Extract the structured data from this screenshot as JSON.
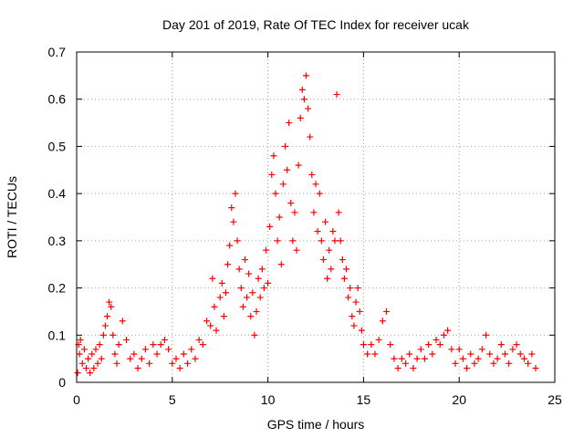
{
  "chart_data": {
    "type": "scatter",
    "title": "Day 201 of 2019, Rate Of TEC Index for receiver ucak",
    "xlabel": "GPS time / hours",
    "ylabel": "ROTI / TECUs",
    "xlim": [
      0,
      25
    ],
    "ylim": [
      0,
      0.7
    ],
    "xticks": [
      "0",
      "5",
      "10",
      "15",
      "20",
      "25"
    ],
    "yticks": [
      "0",
      "0.1",
      "0.2",
      "0.3",
      "0.4",
      "0.5",
      "0.6",
      "0.7"
    ],
    "grid": true,
    "legend": "none",
    "marker": "plus",
    "color": "#ff0000",
    "series": [
      {
        "points": [
          [
            0.05,
            0.02
          ],
          [
            0.1,
            0.08
          ],
          [
            0.15,
            0.06
          ],
          [
            0.2,
            0.09
          ],
          [
            0.3,
            0.04
          ],
          [
            0.4,
            0.07
          ],
          [
            0.5,
            0.03
          ],
          [
            0.6,
            0.05
          ],
          [
            0.7,
            0.02
          ],
          [
            0.8,
            0.06
          ],
          [
            0.9,
            0.03
          ],
          [
            1.0,
            0.07
          ],
          [
            1.1,
            0.04
          ],
          [
            1.2,
            0.08
          ],
          [
            1.3,
            0.05
          ],
          [
            1.4,
            0.1
          ],
          [
            1.5,
            0.12
          ],
          [
            1.6,
            0.14
          ],
          [
            1.7,
            0.17
          ],
          [
            1.8,
            0.16
          ],
          [
            1.9,
            0.1
          ],
          [
            2.0,
            0.06
          ],
          [
            2.1,
            0.04
          ],
          [
            2.2,
            0.08
          ],
          [
            2.4,
            0.13
          ],
          [
            2.6,
            0.09
          ],
          [
            2.8,
            0.05
          ],
          [
            3.0,
            0.06
          ],
          [
            3.2,
            0.03
          ],
          [
            3.4,
            0.05
          ],
          [
            3.6,
            0.07
          ],
          [
            3.8,
            0.04
          ],
          [
            4.0,
            0.08
          ],
          [
            4.2,
            0.06
          ],
          [
            4.4,
            0.08
          ],
          [
            4.6,
            0.09
          ],
          [
            4.8,
            0.07
          ],
          [
            5.0,
            0.04
          ],
          [
            5.2,
            0.05
          ],
          [
            5.4,
            0.03
          ],
          [
            5.6,
            0.06
          ],
          [
            5.8,
            0.04
          ],
          [
            6.0,
            0.07
          ],
          [
            6.2,
            0.05
          ],
          [
            6.4,
            0.09
          ],
          [
            6.6,
            0.08
          ],
          [
            6.8,
            0.13
          ],
          [
            7.0,
            0.12
          ],
          [
            7.1,
            0.22
          ],
          [
            7.2,
            0.16
          ],
          [
            7.3,
            0.11
          ],
          [
            7.5,
            0.18
          ],
          [
            7.6,
            0.21
          ],
          [
            7.7,
            0.14
          ],
          [
            7.8,
            0.19
          ],
          [
            7.9,
            0.25
          ],
          [
            8.0,
            0.29
          ],
          [
            8.1,
            0.37
          ],
          [
            8.2,
            0.34
          ],
          [
            8.3,
            0.4
          ],
          [
            8.4,
            0.3
          ],
          [
            8.5,
            0.24
          ],
          [
            8.6,
            0.2
          ],
          [
            8.7,
            0.16
          ],
          [
            8.8,
            0.26
          ],
          [
            8.9,
            0.18
          ],
          [
            9.0,
            0.23
          ],
          [
            9.1,
            0.14
          ],
          [
            9.2,
            0.19
          ],
          [
            9.3,
            0.1
          ],
          [
            9.4,
            0.15
          ],
          [
            9.5,
            0.22
          ],
          [
            9.6,
            0.18
          ],
          [
            9.7,
            0.24
          ],
          [
            9.8,
            0.2
          ],
          [
            9.9,
            0.28
          ],
          [
            10.0,
            0.21
          ],
          [
            10.1,
            0.33
          ],
          [
            10.2,
            0.44
          ],
          [
            10.3,
            0.48
          ],
          [
            10.4,
            0.4
          ],
          [
            10.5,
            0.3
          ],
          [
            10.6,
            0.35
          ],
          [
            10.7,
            0.25
          ],
          [
            10.8,
            0.42
          ],
          [
            10.9,
            0.5
          ],
          [
            11.0,
            0.45
          ],
          [
            11.1,
            0.55
          ],
          [
            11.2,
            0.38
          ],
          [
            11.3,
            0.3
          ],
          [
            11.4,
            0.36
          ],
          [
            11.5,
            0.28
          ],
          [
            11.6,
            0.46
          ],
          [
            11.7,
            0.56
          ],
          [
            11.8,
            0.62
          ],
          [
            11.9,
            0.6
          ],
          [
            12.0,
            0.65
          ],
          [
            12.1,
            0.58
          ],
          [
            12.2,
            0.52
          ],
          [
            12.3,
            0.44
          ],
          [
            12.4,
            0.36
          ],
          [
            12.5,
            0.42
          ],
          [
            12.6,
            0.32
          ],
          [
            12.7,
            0.4
          ],
          [
            12.8,
            0.3
          ],
          [
            12.9,
            0.26
          ],
          [
            13.0,
            0.34
          ],
          [
            13.1,
            0.22
          ],
          [
            13.2,
            0.28
          ],
          [
            13.3,
            0.24
          ],
          [
            13.4,
            0.32
          ],
          [
            13.5,
            0.3
          ],
          [
            13.6,
            0.61
          ],
          [
            13.7,
            0.36
          ],
          [
            13.8,
            0.3
          ],
          [
            13.9,
            0.26
          ],
          [
            14.0,
            0.22
          ],
          [
            14.1,
            0.24
          ],
          [
            14.2,
            0.18
          ],
          [
            14.3,
            0.2
          ],
          [
            14.4,
            0.14
          ],
          [
            14.5,
            0.12
          ],
          [
            14.6,
            0.17
          ],
          [
            14.7,
            0.2
          ],
          [
            14.8,
            0.15
          ],
          [
            14.9,
            0.11
          ],
          [
            15.0,
            0.08
          ],
          [
            15.2,
            0.06
          ],
          [
            15.4,
            0.08
          ],
          [
            15.6,
            0.06
          ],
          [
            15.8,
            0.09
          ],
          [
            16.0,
            0.13
          ],
          [
            16.2,
            0.15
          ],
          [
            16.4,
            0.08
          ],
          [
            16.6,
            0.05
          ],
          [
            16.8,
            0.03
          ],
          [
            17.0,
            0.05
          ],
          [
            17.2,
            0.04
          ],
          [
            17.4,
            0.06
          ],
          [
            17.6,
            0.03
          ],
          [
            17.8,
            0.05
          ],
          [
            18.0,
            0.07
          ],
          [
            18.2,
            0.05
          ],
          [
            18.4,
            0.08
          ],
          [
            18.6,
            0.06
          ],
          [
            18.8,
            0.09
          ],
          [
            19.0,
            0.08
          ],
          [
            19.2,
            0.1
          ],
          [
            19.4,
            0.11
          ],
          [
            19.6,
            0.07
          ],
          [
            19.8,
            0.04
          ],
          [
            20.0,
            0.07
          ],
          [
            20.2,
            0.05
          ],
          [
            20.4,
            0.03
          ],
          [
            20.6,
            0.06
          ],
          [
            20.8,
            0.04
          ],
          [
            21.0,
            0.05
          ],
          [
            21.2,
            0.07
          ],
          [
            21.4,
            0.1
          ],
          [
            21.6,
            0.06
          ],
          [
            21.8,
            0.04
          ],
          [
            22.0,
            0.05
          ],
          [
            22.2,
            0.08
          ],
          [
            22.4,
            0.06
          ],
          [
            22.6,
            0.04
          ],
          [
            22.8,
            0.07
          ],
          [
            23.0,
            0.08
          ],
          [
            23.2,
            0.06
          ],
          [
            23.4,
            0.05
          ],
          [
            23.6,
            0.04
          ],
          [
            23.8,
            0.06
          ],
          [
            24.0,
            0.03
          ]
        ]
      }
    ]
  }
}
